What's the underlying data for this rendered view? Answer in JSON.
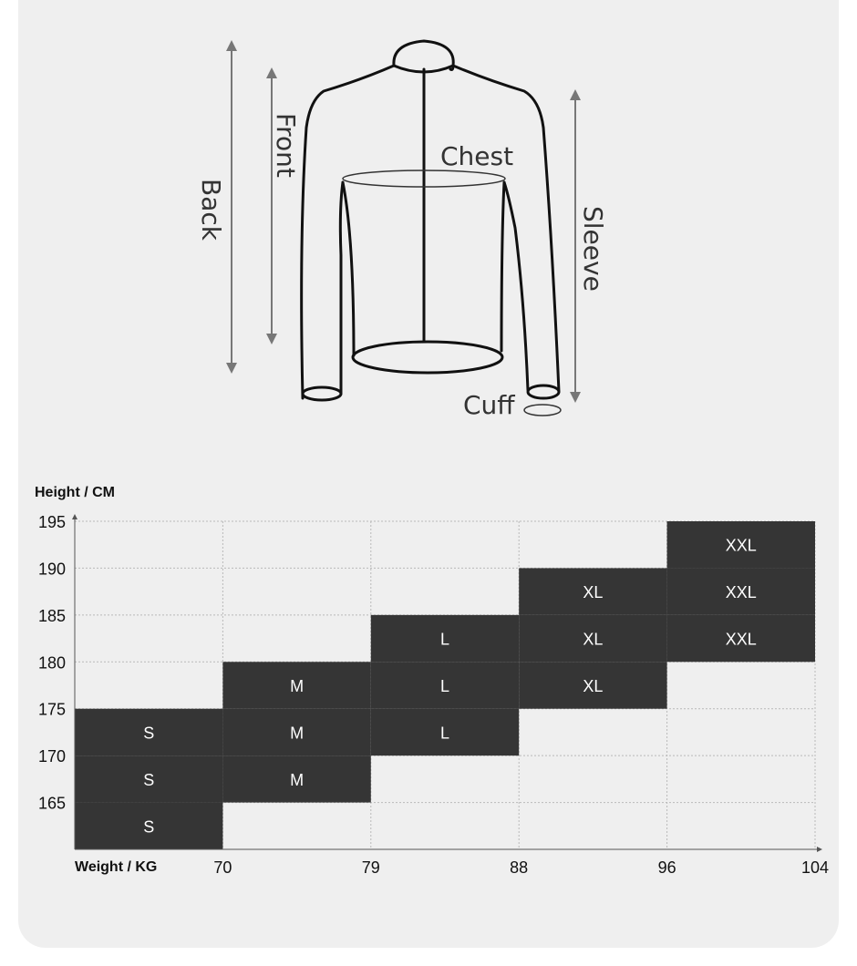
{
  "diagram": {
    "labels": {
      "back": "Back",
      "front": "Front",
      "chest": "Chest",
      "sleeve": "Sleeve",
      "cuff": "Cuff"
    }
  },
  "chart_data": {
    "type": "heatmap",
    "ylabel": "Height / CM",
    "xlabel": "Weight / KG",
    "y_ticks": [
      "195",
      "190",
      "185",
      "180",
      "175",
      "170",
      "165"
    ],
    "x_ticks": [
      "70",
      "79",
      "88",
      "96",
      "104"
    ],
    "grid": true,
    "cells": [
      {
        "col": 0,
        "row": 4,
        "size": "S"
      },
      {
        "col": 0,
        "row": 5,
        "size": "S"
      },
      {
        "col": 0,
        "row": 6,
        "size": "S"
      },
      {
        "col": 1,
        "row": 3,
        "size": "M"
      },
      {
        "col": 1,
        "row": 4,
        "size": "M"
      },
      {
        "col": 1,
        "row": 5,
        "size": "M"
      },
      {
        "col": 2,
        "row": 2,
        "size": "L"
      },
      {
        "col": 2,
        "row": 3,
        "size": "L"
      },
      {
        "col": 2,
        "row": 4,
        "size": "L"
      },
      {
        "col": 3,
        "row": 1,
        "size": "XL"
      },
      {
        "col": 3,
        "row": 2,
        "size": "XL"
      },
      {
        "col": 3,
        "row": 3,
        "size": "XL"
      },
      {
        "col": 4,
        "row": 0,
        "size": "XXL"
      },
      {
        "col": 4,
        "row": 1,
        "size": "XXL"
      },
      {
        "col": 4,
        "row": 2,
        "size": "XXL"
      }
    ],
    "colors": {
      "cell": "#353535",
      "background": "#efefef",
      "grid": "#b9b9b9"
    }
  }
}
